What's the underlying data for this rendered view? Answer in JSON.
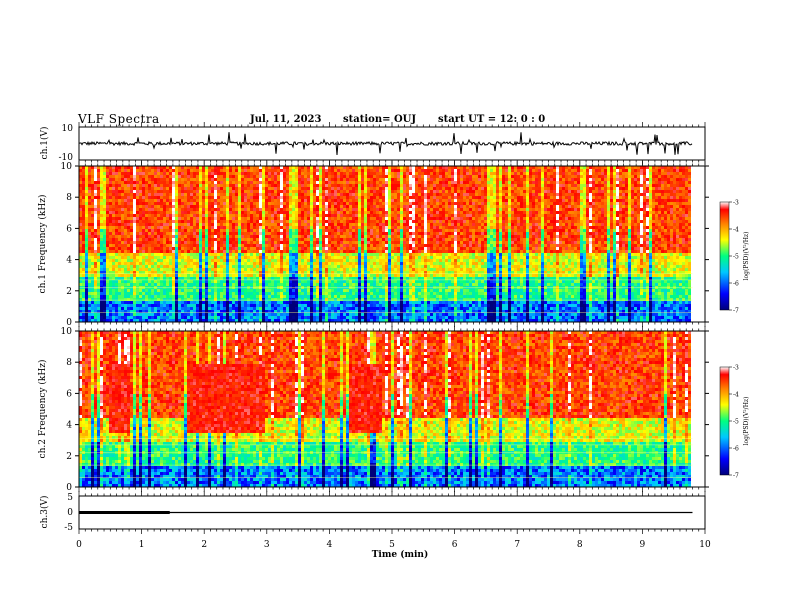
{
  "header": {
    "title": "VLF Spectra",
    "date": "Jul. 11, 2023",
    "station": "station= OUJ",
    "start": "start UT = 12: 0 : 0"
  },
  "colors": {
    "palette": [
      "#00007a",
      "#0000ff",
      "#00c8ff",
      "#00ff80",
      "#ffff00",
      "#ff8000",
      "#ff0000",
      "#ffffff"
    ],
    "trace": "#000000"
  },
  "chart_data": [
    {
      "type": "line",
      "panel": "ch1-waveform",
      "ylabel": "ch.1(V)",
      "ylim": [
        -10,
        10
      ],
      "yticks": [
        10,
        -10
      ],
      "description_values": {
        "mean": 0,
        "noise_amplitude": 2,
        "spike_amplitude": 7
      }
    },
    {
      "type": "heatmap",
      "panel": "ch1-spectrogram",
      "ylabel": "ch.1 Frequency (kHz)",
      "ylim": [
        0,
        10
      ],
      "yticks": [
        0,
        2,
        4,
        6,
        8,
        10
      ],
      "colorbar": {
        "label": "log(PSD)(V²/Hz)",
        "range": [
          -7,
          -3
        ],
        "ticks": [
          -3,
          -4,
          -5,
          -6,
          -7
        ]
      }
    },
    {
      "type": "heatmap",
      "panel": "ch2-spectrogram",
      "ylabel": "ch.2 Frequency (kHz)",
      "ylim": [
        0,
        10
      ],
      "yticks": [
        0,
        2,
        4,
        6,
        8,
        10
      ],
      "bursts_min": [
        [
          0.45,
          0.8
        ],
        [
          1.7,
          2.95
        ],
        [
          4.3,
          4.8
        ]
      ],
      "colorbar": {
        "label": "log(PSD)(V²/Hz)",
        "range": [
          -7,
          -3
        ],
        "ticks": [
          -3,
          -4,
          -5,
          -6,
          -7
        ]
      }
    },
    {
      "type": "line",
      "panel": "ch3-waveform",
      "ylabel": "ch.3(V)",
      "ylim": [
        -5,
        5
      ],
      "yticks": [
        5,
        0,
        -5
      ],
      "series": [
        {
          "x": [
            0,
            1.45
          ],
          "y": [
            0,
            0
          ],
          "width": "thick"
        },
        {
          "x": [
            0,
            9.8
          ],
          "y": [
            0,
            0
          ]
        }
      ]
    }
  ],
  "xaxis": {
    "label": "Time (min)",
    "ticks": [
      "0",
      "1",
      "2",
      "3",
      "4",
      "5",
      "6",
      "7",
      "8",
      "9",
      "10"
    ],
    "xlim": [
      0,
      10
    ],
    "data_end": 9.8
  }
}
